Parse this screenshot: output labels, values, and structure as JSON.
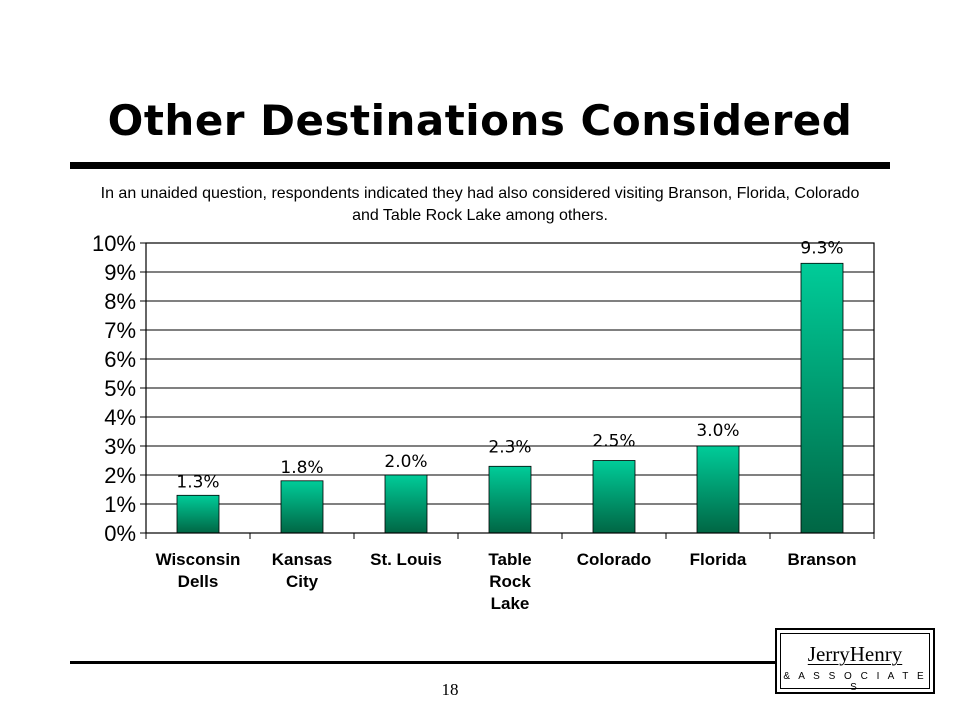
{
  "slide": {
    "title": "Other Destinations Considered",
    "subtitle": "In an unaided question, respondents indicated they had also considered visiting Branson, Florida, Colorado and Table Rock Lake among others.",
    "page_number": "18"
  },
  "logo": {
    "name": "JerryHenry",
    "tagline": "& A S S O C I A T E S"
  },
  "chart_data": {
    "type": "bar",
    "title": "",
    "xlabel": "",
    "ylabel": "",
    "categories": [
      "Wisconsin Dells",
      "Kansas City",
      "St. Louis",
      "Table Rock Lake",
      "Colorado",
      "Florida",
      "Branson"
    ],
    "category_lines": [
      [
        "Wisconsin",
        "Dells"
      ],
      [
        "Kansas",
        "City"
      ],
      [
        "St. Louis"
      ],
      [
        "Table",
        "Rock",
        "Lake"
      ],
      [
        "Colorado"
      ],
      [
        "Florida"
      ],
      [
        "Branson"
      ]
    ],
    "values": [
      1.3,
      1.8,
      2.0,
      2.3,
      2.5,
      3.0,
      9.3
    ],
    "data_labels": [
      "1.3%",
      "1.8%",
      "2.0%",
      "2.3%",
      "2.5%",
      "3.0%",
      "9.3%"
    ],
    "ylim": [
      0,
      10
    ],
    "y_ticks": [
      0,
      1,
      2,
      3,
      4,
      5,
      6,
      7,
      8,
      9,
      10
    ],
    "y_tick_labels": [
      "0%",
      "1%",
      "2%",
      "3%",
      "4%",
      "5%",
      "6%",
      "7%",
      "8%",
      "9%",
      "10%"
    ],
    "grid": true,
    "legend": "none",
    "colors": {
      "bar_top": "#00cc99",
      "bar_bottom": "#006644",
      "grid": "#000000"
    }
  }
}
